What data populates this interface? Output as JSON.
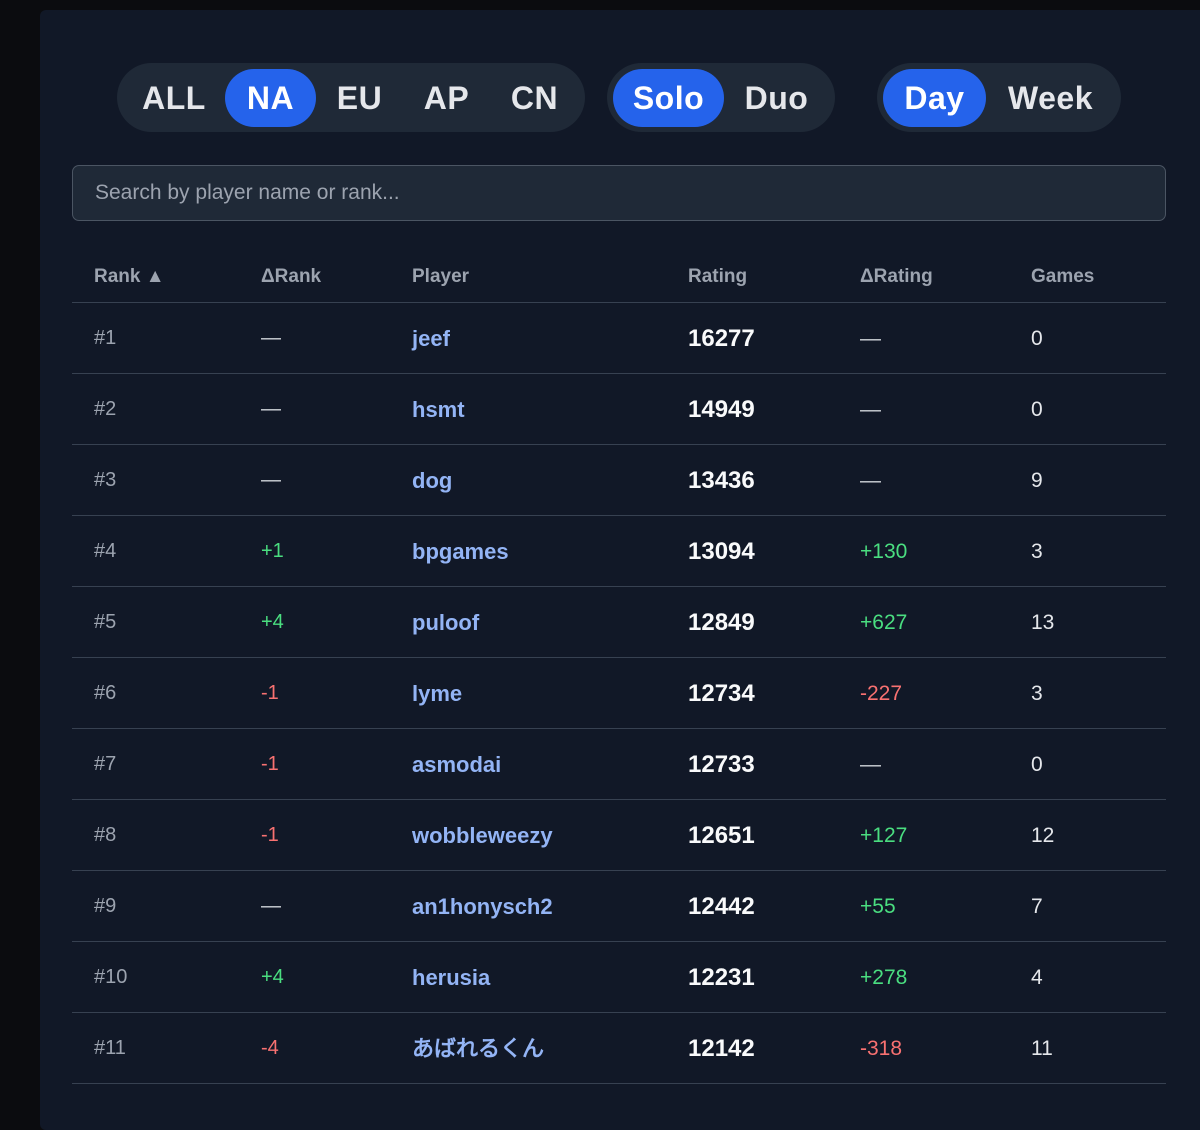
{
  "filters": {
    "region": [
      "ALL",
      "NA",
      "EU",
      "AP",
      "CN"
    ],
    "region_active": "NA",
    "mode": [
      "Solo",
      "Duo"
    ],
    "mode_active": "Solo",
    "period": [
      "Day",
      "Week"
    ],
    "period_active": "Day"
  },
  "search": {
    "placeholder": "Search by player name or rank...",
    "value": ""
  },
  "table": {
    "headers": {
      "rank": "Rank ▲",
      "delta_rank": "ΔRank",
      "player": "Player",
      "rating": "Rating",
      "delta_rating": "ΔRating",
      "games": "Games"
    },
    "rows": [
      {
        "rank": "#1",
        "delta_rank": "—",
        "player": "jeef",
        "rating": "16277",
        "delta_rating": "—",
        "games": "0"
      },
      {
        "rank": "#2",
        "delta_rank": "—",
        "player": "hsmt",
        "rating": "14949",
        "delta_rating": "—",
        "games": "0"
      },
      {
        "rank": "#3",
        "delta_rank": "—",
        "player": "dog",
        "rating": "13436",
        "delta_rating": "—",
        "games": "9"
      },
      {
        "rank": "#4",
        "delta_rank": "+1",
        "player": "bpgames",
        "rating": "13094",
        "delta_rating": "+130",
        "games": "3"
      },
      {
        "rank": "#5",
        "delta_rank": "+4",
        "player": "puloof",
        "rating": "12849",
        "delta_rating": "+627",
        "games": "13"
      },
      {
        "rank": "#6",
        "delta_rank": "-1",
        "player": "lyme",
        "rating": "12734",
        "delta_rating": "-227",
        "games": "3"
      },
      {
        "rank": "#7",
        "delta_rank": "-1",
        "player": "asmodai",
        "rating": "12733",
        "delta_rating": "—",
        "games": "0"
      },
      {
        "rank": "#8",
        "delta_rank": "-1",
        "player": "wobbleweezy",
        "rating": "12651",
        "delta_rating": "+127",
        "games": "12"
      },
      {
        "rank": "#9",
        "delta_rank": "—",
        "player": "an1honysch2",
        "rating": "12442",
        "delta_rating": "+55",
        "games": "7"
      },
      {
        "rank": "#10",
        "delta_rank": "+4",
        "player": "herusia",
        "rating": "12231",
        "delta_rating": "+278",
        "games": "4"
      },
      {
        "rank": "#11",
        "delta_rank": "-4",
        "player": "あばれるくん",
        "rating": "12142",
        "delta_rating": "-318",
        "games": "11"
      }
    ]
  },
  "colors": {
    "accent": "#2563eb",
    "positive": "#4ade80",
    "negative": "#f87171",
    "player_link": "#93b4f5",
    "panel_bg": "#111827"
  }
}
